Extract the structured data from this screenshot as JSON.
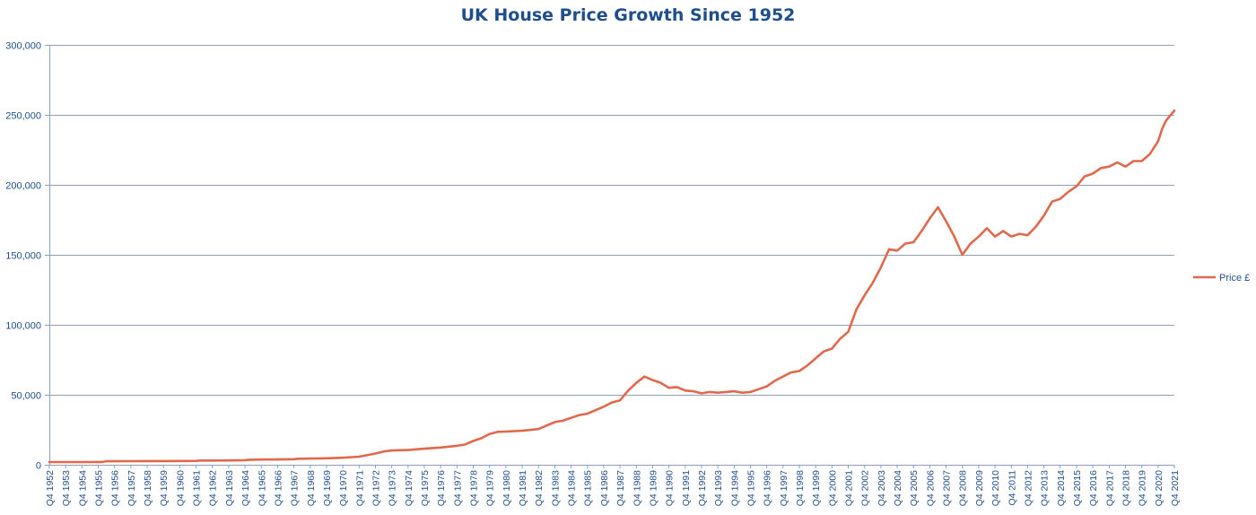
{
  "chart_data": {
    "type": "line",
    "title": "UK House Price Growth Since 1952",
    "xlabel": "",
    "ylabel": "",
    "ylim": [
      0,
      300000
    ],
    "yticks": [
      0,
      50000,
      100000,
      150000,
      200000,
      250000,
      300000
    ],
    "ytick_labels": [
      "0",
      "50,000",
      "100,000",
      "150,000",
      "200,000",
      "250,000",
      "300,000"
    ],
    "grid": true,
    "legend_position": "right",
    "x_tick_labels": [
      "Q4 1952",
      "Q4 1953",
      "Q4 1954",
      "Q4 1955",
      "Q4 1956",
      "Q4 1957",
      "Q4 1958",
      "Q4 1959",
      "Q4 1960",
      "Q4 1961",
      "Q4 1962",
      "Q4 1963",
      "Q4 1964",
      "Q4 1965",
      "Q4 1966",
      "Q4 1967",
      "Q4 1968",
      "Q4 1969",
      "Q4 1970",
      "Q4 1971",
      "Q4 1972",
      "Q4 1973",
      "Q4 1974",
      "Q4 1975",
      "Q4 1976",
      "Q4 1977",
      "Q4 1978",
      "Q4 1979",
      "Q4 1980",
      "Q4 1981",
      "Q4 1982",
      "Q4 1983",
      "Q4 1984",
      "Q4 1985",
      "Q4 1986",
      "Q4 1987",
      "Q4 1988",
      "Q4 1989",
      "Q4 1990",
      "Q4 1991",
      "Q4 1992",
      "Q4 1993",
      "Q4 1994",
      "Q4 1995",
      "Q4 1996",
      "Q4 1997",
      "Q4 1998",
      "Q4 1999",
      "Q4 2000",
      "Q4 2001",
      "Q4 2002",
      "Q4 2003",
      "Q4 2004",
      "Q4 2005",
      "Q4 2006",
      "Q4 2007",
      "Q4 2008",
      "Q4 2009",
      "Q4 2010",
      "Q4 2011",
      "Q4 2012",
      "Q4 2013",
      "Q4 2014",
      "Q4 2015",
      "Q4 2016",
      "Q4 2017",
      "Q4 2018",
      "Q4 2019",
      "Q4 2020",
      "Q4 2021"
    ],
    "series": [
      {
        "name": "Price £",
        "color": "#e0694d",
        "points": [
          [
            1952.75,
            1900
          ],
          [
            1953.75,
            1900
          ],
          [
            1954.75,
            1950
          ],
          [
            1955.75,
            2000
          ],
          [
            1956.0,
            2000
          ],
          [
            1956.25,
            2500
          ],
          [
            1957.75,
            2550
          ],
          [
            1958.75,
            2600
          ],
          [
            1959.75,
            2650
          ],
          [
            1960.75,
            2700
          ],
          [
            1961.75,
            2750
          ],
          [
            1962.0,
            3000
          ],
          [
            1962.75,
            3000
          ],
          [
            1963.75,
            3100
          ],
          [
            1964.75,
            3300
          ],
          [
            1965.0,
            3600
          ],
          [
            1965.75,
            3700
          ],
          [
            1966.75,
            3800
          ],
          [
            1967.75,
            4000
          ],
          [
            1968.0,
            4300
          ],
          [
            1968.75,
            4400
          ],
          [
            1969.75,
            4600
          ],
          [
            1970.75,
            5000
          ],
          [
            1971.75,
            5800
          ],
          [
            1972.75,
            8000
          ],
          [
            1973.25,
            9500
          ],
          [
            1973.75,
            10200
          ],
          [
            1974.75,
            10500
          ],
          [
            1975.75,
            11500
          ],
          [
            1976.75,
            12300
          ],
          [
            1977.75,
            13500
          ],
          [
            1978.25,
            14500
          ],
          [
            1978.75,
            17000
          ],
          [
            1979.25,
            19000
          ],
          [
            1979.75,
            22000
          ],
          [
            1980.25,
            23500
          ],
          [
            1980.75,
            23700
          ],
          [
            1981.75,
            24300
          ],
          [
            1982.75,
            25500
          ],
          [
            1983.25,
            28000
          ],
          [
            1983.75,
            30500
          ],
          [
            1984.25,
            31500
          ],
          [
            1984.75,
            33500
          ],
          [
            1985.25,
            35500
          ],
          [
            1985.75,
            36500
          ],
          [
            1986.25,
            39000
          ],
          [
            1986.75,
            41500
          ],
          [
            1987.25,
            44500
          ],
          [
            1987.75,
            46000
          ],
          [
            1988.25,
            53000
          ],
          [
            1988.75,
            58500
          ],
          [
            1989.25,
            63000
          ],
          [
            1989.75,
            60500
          ],
          [
            1990.25,
            58500
          ],
          [
            1990.75,
            55000
          ],
          [
            1991.25,
            55500
          ],
          [
            1991.75,
            53000
          ],
          [
            1992.25,
            52500
          ],
          [
            1992.75,
            51000
          ],
          [
            1993.25,
            52000
          ],
          [
            1993.75,
            51500
          ],
          [
            1994.25,
            52000
          ],
          [
            1994.75,
            52500
          ],
          [
            1995.25,
            51500
          ],
          [
            1995.75,
            52000
          ],
          [
            1996.25,
            54000
          ],
          [
            1996.75,
            56000
          ],
          [
            1997.25,
            60000
          ],
          [
            1997.75,
            63000
          ],
          [
            1998.25,
            66000
          ],
          [
            1998.75,
            67000
          ],
          [
            1999.25,
            71000
          ],
          [
            1999.75,
            76000
          ],
          [
            2000.25,
            81000
          ],
          [
            2000.75,
            83000
          ],
          [
            2001.25,
            90000
          ],
          [
            2001.75,
            95000
          ],
          [
            2002.25,
            111000
          ],
          [
            2002.75,
            121000
          ],
          [
            2003.25,
            130000
          ],
          [
            2003.75,
            141000
          ],
          [
            2004.25,
            154000
          ],
          [
            2004.75,
            153000
          ],
          [
            2005.25,
            158000
          ],
          [
            2005.75,
            159000
          ],
          [
            2006.25,
            167000
          ],
          [
            2006.75,
            176000
          ],
          [
            2007.25,
            184000
          ],
          [
            2007.75,
            174000
          ],
          [
            2008.25,
            163000
          ],
          [
            2008.75,
            150000
          ],
          [
            2009.25,
            158000
          ],
          [
            2009.75,
            163000
          ],
          [
            2010.25,
            169000
          ],
          [
            2010.75,
            163000
          ],
          [
            2011.25,
            167000
          ],
          [
            2011.75,
            163000
          ],
          [
            2012.25,
            165000
          ],
          [
            2012.75,
            164000
          ],
          [
            2013.25,
            170000
          ],
          [
            2013.75,
            178000
          ],
          [
            2014.25,
            188000
          ],
          [
            2014.75,
            190000
          ],
          [
            2015.25,
            195000
          ],
          [
            2015.75,
            199000
          ],
          [
            2016.25,
            206000
          ],
          [
            2016.75,
            208000
          ],
          [
            2017.25,
            212000
          ],
          [
            2017.75,
            213000
          ],
          [
            2018.25,
            216000
          ],
          [
            2018.75,
            213000
          ],
          [
            2019.25,
            217000
          ],
          [
            2019.75,
            217000
          ],
          [
            2020.25,
            222000
          ],
          [
            2020.75,
            231000
          ],
          [
            2021.0,
            240000
          ],
          [
            2021.25,
            246000
          ],
          [
            2021.75,
            253000
          ]
        ]
      }
    ]
  }
}
